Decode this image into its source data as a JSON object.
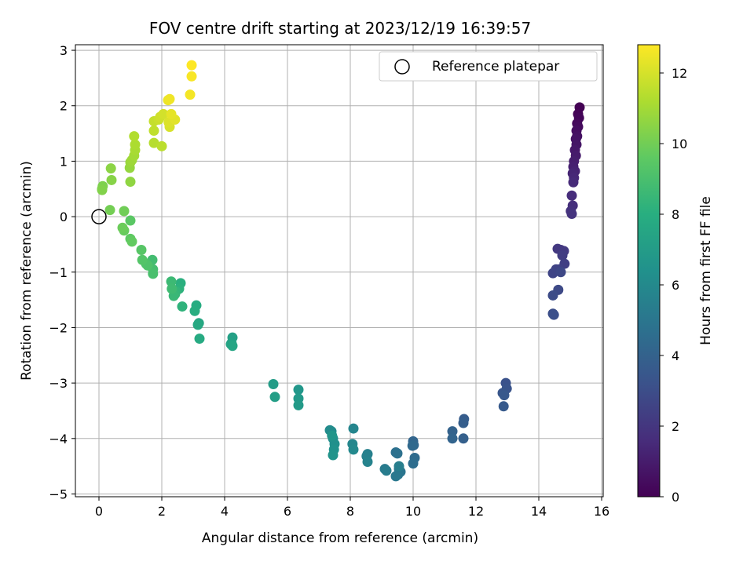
{
  "chart_data": {
    "type": "scatter",
    "title": "FOV centre drift starting at 2023/12/19 16:39:57",
    "xlabel": "Angular distance from reference (arcmin)",
    "ylabel": "Rotation from reference (arcmin)",
    "xlim": [
      -0.75,
      16.05
    ],
    "ylim": [
      -5.05,
      3.1
    ],
    "xticks": [
      "0",
      "2",
      "4",
      "6",
      "8",
      "10",
      "12",
      "14",
      "16"
    ],
    "yticks": [
      "−5",
      "−4",
      "−3",
      "−2",
      "−1",
      "0",
      "1",
      "2",
      "3"
    ],
    "grid": true,
    "legend_position": "top-right",
    "colorbar": {
      "label": "Hours from first FF file",
      "range": [
        0,
        12.8
      ],
      "ticks": [
        "0",
        "2",
        "4",
        "6",
        "8",
        "10",
        "12"
      ],
      "colormap": "viridis"
    },
    "reference_point": {
      "name": "Reference platepar",
      "x": 0,
      "y": 0
    },
    "series": [
      {
        "points": [
          [
            15.3,
            1.97
          ],
          [
            15.25,
            1.85
          ],
          [
            15.28,
            1.78
          ],
          [
            15.22,
            1.68
          ],
          [
            15.25,
            1.62
          ],
          [
            15.2,
            1.55
          ],
          [
            15.22,
            1.45
          ],
          [
            15.18,
            1.4
          ],
          [
            15.2,
            1.3
          ],
          [
            15.15,
            1.2
          ],
          [
            15.18,
            1.1
          ],
          [
            15.12,
            1.0
          ],
          [
            15.1,
            0.9
          ],
          [
            15.15,
            0.82
          ],
          [
            15.08,
            0.78
          ],
          [
            15.12,
            0.7
          ],
          [
            15.1,
            0.62
          ],
          [
            15.05,
            0.38
          ],
          [
            15.08,
            0.2
          ],
          [
            15.02,
            0.1
          ],
          [
            15.05,
            0.05
          ],
          [
            14.7,
            -0.6
          ],
          [
            14.6,
            -0.58
          ],
          [
            14.8,
            -0.62
          ],
          [
            14.75,
            -0.7
          ],
          [
            14.82,
            -0.85
          ],
          [
            14.65,
            -0.95
          ],
          [
            14.55,
            -0.95
          ],
          [
            14.45,
            -1.02
          ],
          [
            14.7,
            -1.0
          ],
          [
            14.62,
            -1.32
          ],
          [
            14.45,
            -1.42
          ],
          [
            14.45,
            -1.75
          ],
          [
            14.48,
            -1.77
          ],
          [
            12.95,
            -3.0
          ],
          [
            12.98,
            -3.1
          ],
          [
            12.85,
            -3.18
          ],
          [
            12.9,
            -3.22
          ],
          [
            12.88,
            -3.42
          ],
          [
            11.62,
            -3.65
          ],
          [
            11.6,
            -3.72
          ],
          [
            11.6,
            -4.0
          ],
          [
            11.25,
            -3.87
          ],
          [
            11.25,
            -4.0
          ],
          [
            10.0,
            -4.05
          ],
          [
            10.02,
            -4.12
          ],
          [
            9.98,
            -4.13
          ],
          [
            10.05,
            -4.35
          ],
          [
            10.0,
            -4.45
          ],
          [
            9.45,
            -4.25
          ],
          [
            9.5,
            -4.27
          ],
          [
            9.55,
            -4.55
          ],
          [
            9.6,
            -4.6
          ],
          [
            9.52,
            -4.65
          ],
          [
            9.45,
            -4.68
          ],
          [
            9.1,
            -4.55
          ],
          [
            9.15,
            -4.58
          ],
          [
            9.55,
            -4.5
          ],
          [
            8.55,
            -4.28
          ],
          [
            8.52,
            -4.32
          ],
          [
            8.55,
            -4.42
          ],
          [
            8.1,
            -3.82
          ],
          [
            8.07,
            -4.1
          ],
          [
            8.1,
            -4.2
          ],
          [
            7.35,
            -3.85
          ],
          [
            7.4,
            -3.87
          ],
          [
            7.45,
            -4.0
          ],
          [
            7.5,
            -4.1
          ],
          [
            7.48,
            -4.2
          ],
          [
            7.45,
            -4.3
          ],
          [
            7.42,
            -3.95
          ],
          [
            6.35,
            -3.12
          ],
          [
            6.35,
            -3.28
          ],
          [
            6.35,
            -3.4
          ],
          [
            5.55,
            -3.02
          ],
          [
            5.6,
            -3.25
          ],
          [
            4.25,
            -2.18
          ],
          [
            4.22,
            -2.28
          ],
          [
            4.2,
            -2.3
          ],
          [
            4.25,
            -2.33
          ],
          [
            3.18,
            -1.92
          ],
          [
            3.15,
            -1.95
          ],
          [
            3.2,
            -2.2
          ],
          [
            3.1,
            -1.6
          ],
          [
            3.05,
            -1.7
          ],
          [
            2.6,
            -1.2
          ],
          [
            2.55,
            -1.3
          ],
          [
            2.65,
            -1.62
          ],
          [
            2.45,
            -1.35
          ],
          [
            2.42,
            -1.4
          ],
          [
            2.38,
            -1.43
          ],
          [
            2.3,
            -1.17
          ],
          [
            2.32,
            -1.3
          ],
          [
            1.7,
            -0.78
          ],
          [
            1.72,
            -0.95
          ],
          [
            1.72,
            -1.03
          ],
          [
            1.5,
            -0.85
          ],
          [
            1.55,
            -0.88
          ],
          [
            1.38,
            -0.78
          ],
          [
            1.35,
            -0.6
          ],
          [
            1.0,
            -0.07
          ],
          [
            1.0,
            -0.4
          ],
          [
            1.05,
            -0.45
          ],
          [
            0.8,
            -0.25
          ],
          [
            0.75,
            -0.2
          ],
          [
            0.8,
            0.1
          ],
          [
            0.35,
            0.12
          ],
          [
            0.1,
            0.5
          ],
          [
            0.12,
            0.55
          ],
          [
            0.1,
            0.48
          ],
          [
            0.4,
            0.66
          ],
          [
            0.38,
            0.87
          ],
          [
            1.0,
            0.63
          ],
          [
            0.98,
            0.88
          ],
          [
            1.0,
            0.98
          ],
          [
            1.05,
            1.02
          ],
          [
            1.12,
            1.1
          ],
          [
            1.15,
            1.2
          ],
          [
            1.15,
            1.3
          ],
          [
            1.12,
            1.45
          ],
          [
            1.75,
            1.33
          ],
          [
            2.0,
            1.27
          ],
          [
            1.75,
            1.55
          ],
          [
            1.75,
            1.72
          ],
          [
            1.9,
            1.75
          ],
          [
            1.95,
            1.8
          ],
          [
            2.05,
            1.85
          ],
          [
            2.25,
            1.62
          ],
          [
            2.22,
            1.7
          ],
          [
            2.42,
            1.75
          ],
          [
            2.3,
            1.85
          ],
          [
            2.2,
            2.1
          ],
          [
            2.25,
            2.12
          ],
          [
            2.9,
            2.2
          ],
          [
            2.95,
            2.53
          ],
          [
            2.95,
            2.73
          ]
        ]
      }
    ]
  }
}
